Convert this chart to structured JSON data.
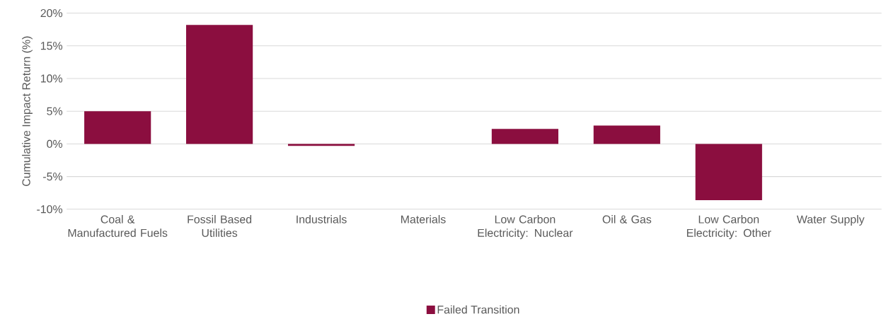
{
  "chart_data": {
    "type": "bar",
    "ylabel": "Cumulative Impact Return (%)",
    "categories": [
      "Coal & Manufactured Fuels",
      "Fossil Based Utilities",
      "Industrials",
      "Materials",
      "Low Carbon Electricity: Nuclear",
      "Oil & Gas",
      "Low Carbon Electricity: Other",
      "Water Supply"
    ],
    "series": [
      {
        "name": "Failed Transition",
        "color": "#8b0e3f",
        "values": [
          5.0,
          18.2,
          -0.3,
          0,
          2.3,
          2.8,
          -8.6,
          0
        ]
      }
    ],
    "ylim": [
      -10,
      20
    ],
    "yticks": [
      {
        "value": -10,
        "label": "-10%"
      },
      {
        "value": -5,
        "label": "-5%"
      },
      {
        "value": 0,
        "label": "0%"
      },
      {
        "value": 5,
        "label": "5%"
      },
      {
        "value": 10,
        "label": "10%"
      },
      {
        "value": 15,
        "label": "15%"
      },
      {
        "value": 20,
        "label": "20%"
      }
    ],
    "grid": "y",
    "legend": "bottom"
  }
}
